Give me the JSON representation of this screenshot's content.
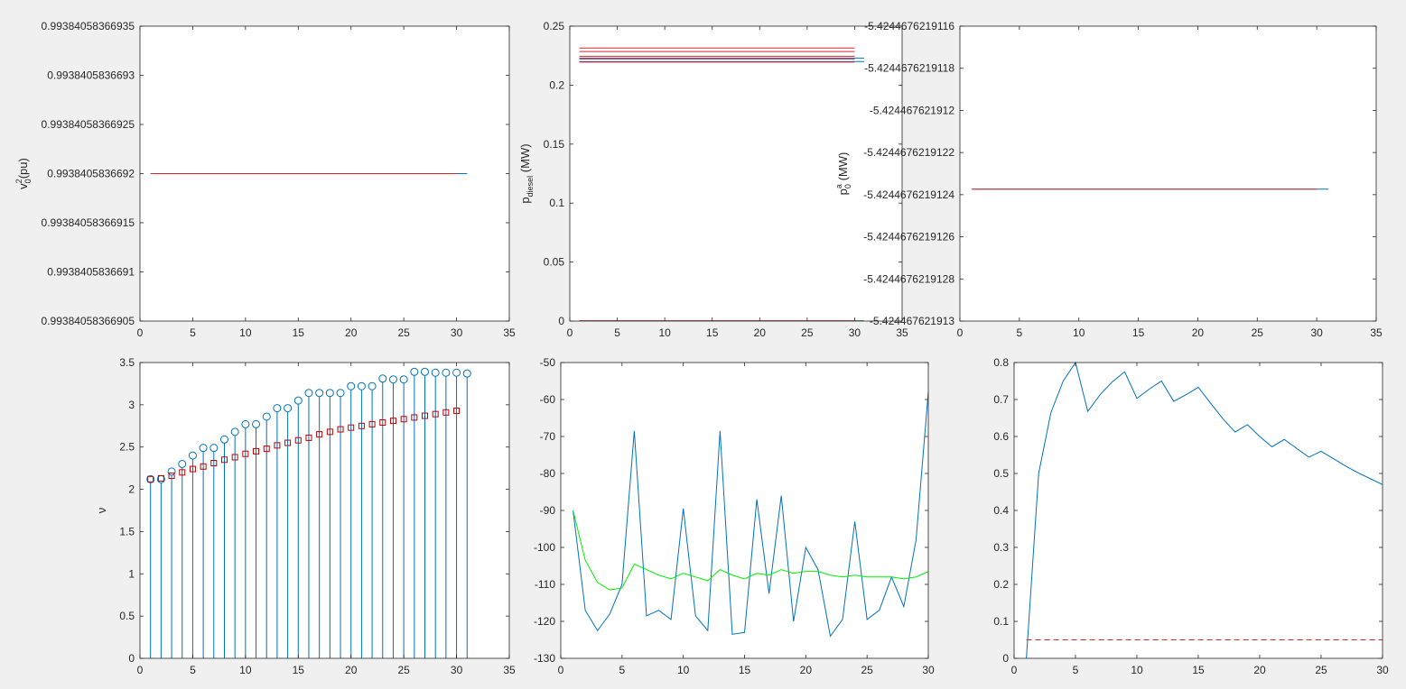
{
  "chart_data": [
    {
      "id": "p1",
      "type": "line",
      "ylabel": {
        "main": "v",
        "sub": "0",
        "sup": "2",
        "tail": "(pu)"
      },
      "xlim": [
        0,
        35
      ],
      "xticks": [
        0,
        5,
        10,
        15,
        20,
        25,
        30,
        35
      ],
      "ylim": [
        0,
        6
      ],
      "yticks": [
        0,
        1,
        2,
        3,
        4,
        5,
        6
      ],
      "ytick_labels": [
        "0.99384058366905",
        "0.9938405836691",
        "0.99384058366915",
        "0.9938405836692",
        "0.99384058366925",
        "0.9938405836693",
        "0.99384058366935"
      ],
      "series": [
        {
          "color": "#0072bd",
          "x": [
            1,
            31
          ],
          "y": [
            3,
            3
          ]
        },
        {
          "color": "#d62728",
          "x": [
            1,
            30
          ],
          "y": [
            3,
            3
          ]
        }
      ]
    },
    {
      "id": "p2",
      "type": "line",
      "ylabel": {
        "main": "p",
        "sub": "diesel",
        "tail": " (MW)"
      },
      "xlim": [
        0,
        35
      ],
      "xticks": [
        0,
        5,
        10,
        15,
        20,
        25,
        30,
        35
      ],
      "ylim": [
        0,
        0.25
      ],
      "yticks": [
        0,
        0.05,
        0.1,
        0.15,
        0.2,
        0.25
      ],
      "ytick_labels": [
        "0",
        "0.05",
        "0.1",
        "0.15",
        "0.2",
        "0.25"
      ],
      "series": [
        {
          "color": "#0072bd",
          "x": [
            1,
            31
          ],
          "y": [
            0.22,
            0.22
          ]
        },
        {
          "color": "#0072bd",
          "x": [
            1,
            31
          ],
          "y": [
            0.223,
            0.223
          ]
        },
        {
          "color": "#d62728",
          "x": [
            1,
            30
          ],
          "y": [
            0.2195,
            0.2195
          ]
        },
        {
          "color": "#d62728",
          "x": [
            1,
            30
          ],
          "y": [
            0.2222,
            0.2222
          ]
        },
        {
          "color": "#d62728",
          "x": [
            1,
            30
          ],
          "y": [
            0.2245,
            0.2245
          ]
        },
        {
          "color": "#d62728",
          "x": [
            1,
            30
          ],
          "y": [
            0.2285,
            0.2285
          ]
        },
        {
          "color": "#d62728",
          "x": [
            1,
            30
          ],
          "y": [
            0.2315,
            0.2315
          ]
        },
        {
          "color": "#d62728",
          "x": [
            1,
            30
          ],
          "y": [
            0.0003,
            0.0003
          ]
        },
        {
          "color": "#2ca02c",
          "x": [
            30,
            31
          ],
          "y": [
            0.0003,
            0.0003
          ]
        }
      ]
    },
    {
      "id": "p3",
      "type": "line",
      "ylabel": {
        "main": "p",
        "sub": "0",
        "sup": "a",
        "tail": " (MW)"
      },
      "xlim": [
        0,
        35
      ],
      "xticks": [
        0,
        5,
        10,
        15,
        20,
        25,
        30,
        35
      ],
      "ylim": [
        0,
        7
      ],
      "yticks": [
        0,
        1,
        2,
        3,
        4,
        5,
        6,
        7
      ],
      "ytick_labels": [
        "-5.424467621913",
        "-5.4244676219128",
        "-5.4244676219126",
        "-5.4244676219124",
        "-5.4244676219122",
        "-5.424467621912",
        "-5.4244676219118",
        "-5.4244676219116"
      ],
      "series": [
        {
          "color": "#0072bd",
          "x": [
            1,
            31
          ],
          "y": [
            3.13,
            3.13
          ]
        },
        {
          "color": "#d62728",
          "x": [
            1,
            30
          ],
          "y": [
            3.13,
            3.13
          ]
        }
      ]
    },
    {
      "id": "p4",
      "type": "stem",
      "ylabel": {
        "main": "ν"
      },
      "xlim": [
        0,
        35
      ],
      "xticks": [
        0,
        5,
        10,
        15,
        20,
        25,
        30,
        35
      ],
      "ylim": [
        0,
        3.5
      ],
      "yticks": [
        0,
        0.5,
        1,
        1.5,
        2,
        2.5,
        3,
        3.5
      ],
      "ytick_labels": [
        "0",
        "0.5",
        "1",
        "1.5",
        "2",
        "2.5",
        "3",
        "3.5"
      ],
      "stem": {
        "color": "#0072bd",
        "x": [
          1,
          2,
          3,
          4,
          5,
          6,
          7,
          8,
          9,
          10,
          11,
          12,
          13,
          14,
          15,
          16,
          17,
          18,
          19,
          20,
          21,
          22,
          23,
          24,
          25,
          26,
          27,
          28,
          29,
          30,
          31
        ],
        "y": [
          2.12,
          2.12,
          2.21,
          2.3,
          2.4,
          2.49,
          2.49,
          2.59,
          2.68,
          2.77,
          2.77,
          2.86,
          2.96,
          2.96,
          3.05,
          3.14,
          3.14,
          3.14,
          3.14,
          3.22,
          3.22,
          3.22,
          3.31,
          3.3,
          3.3,
          3.39,
          3.39,
          3.38,
          3.38,
          3.38,
          3.37
        ]
      },
      "markers": {
        "color": "#c00000",
        "x": [
          1,
          2,
          3,
          4,
          5,
          6,
          7,
          8,
          9,
          10,
          11,
          12,
          13,
          14,
          15,
          16,
          17,
          18,
          19,
          20,
          21,
          22,
          23,
          24,
          25,
          26,
          27,
          28,
          29,
          30
        ],
        "y": [
          2.12,
          2.13,
          2.16,
          2.2,
          2.24,
          2.27,
          2.31,
          2.35,
          2.38,
          2.42,
          2.45,
          2.48,
          2.52,
          2.55,
          2.58,
          2.61,
          2.65,
          2.68,
          2.71,
          2.73,
          2.75,
          2.77,
          2.79,
          2.81,
          2.83,
          2.85,
          2.87,
          2.89,
          2.91,
          2.93
        ]
      }
    },
    {
      "id": "p5",
      "type": "line",
      "xlim": [
        0,
        30
      ],
      "xticks": [
        0,
        5,
        10,
        15,
        20,
        25,
        30
      ],
      "ylim": [
        -130,
        -50
      ],
      "yticks": [
        -130,
        -120,
        -110,
        -100,
        -90,
        -80,
        -70,
        -60,
        -50
      ],
      "ytick_labels": [
        "-130",
        "-120",
        "-110",
        "-100",
        "-90",
        "-80",
        "-70",
        "-60",
        "-50"
      ],
      "series": [
        {
          "color": "#0072bd",
          "x": [
            1,
            2,
            3,
            4,
            5,
            6,
            7,
            8,
            9,
            10,
            11,
            12,
            13,
            14,
            15,
            16,
            17,
            18,
            19,
            20,
            21,
            22,
            23,
            24,
            25,
            26,
            27,
            28,
            29,
            30
          ],
          "y": [
            -90,
            -117,
            -122.5,
            -118,
            -110,
            -68.5,
            -118.5,
            -117,
            -119.5,
            -89.5,
            -118.5,
            -122.5,
            -68.5,
            -123.5,
            -123,
            -87,
            -112.5,
            -86,
            -120,
            -100,
            -106,
            -124,
            -119.5,
            -93,
            -119.5,
            -117,
            -108,
            -116,
            -98,
            -58
          ]
        },
        {
          "color": "#00ee00",
          "x": [
            1,
            2,
            3,
            4,
            5,
            6,
            7,
            8,
            9,
            10,
            11,
            12,
            13,
            14,
            15,
            16,
            17,
            18,
            19,
            20,
            21,
            22,
            23,
            24,
            25,
            26,
            27,
            28,
            29,
            30
          ],
          "y": [
            -90,
            -103.5,
            -109.5,
            -111.5,
            -111,
            -104.5,
            -106,
            -107.5,
            -108.5,
            -107,
            -108,
            -109,
            -106,
            -107.5,
            -108.5,
            -107,
            -107.5,
            -106,
            -107,
            -106.5,
            -106.5,
            -107.5,
            -108,
            -107.5,
            -108,
            -108,
            -108,
            -108.5,
            -108,
            -106.5
          ]
        }
      ]
    },
    {
      "id": "p6",
      "type": "line",
      "xlim": [
        0,
        30
      ],
      "xticks": [
        0,
        5,
        10,
        15,
        20,
        25,
        30
      ],
      "ylim": [
        0,
        0.8
      ],
      "yticks": [
        0,
        0.1,
        0.2,
        0.3,
        0.4,
        0.5,
        0.6,
        0.7,
        0.8
      ],
      "ytick_labels": [
        "0",
        "0.1",
        "0.2",
        "0.3",
        "0.4",
        "0.5",
        "0.6",
        "0.7",
        "0.8"
      ],
      "series": [
        {
          "color": "#0072bd",
          "x": [
            1,
            2,
            3,
            4,
            5,
            6,
            7,
            8,
            9,
            10,
            11,
            12,
            13,
            14,
            15,
            16,
            17,
            18,
            19,
            20,
            21,
            22,
            23,
            24,
            25,
            26,
            27,
            28,
            29,
            30
          ],
          "y": [
            0.0,
            0.5,
            0.665,
            0.75,
            0.8,
            0.668,
            0.713,
            0.748,
            0.775,
            0.703,
            0.728,
            0.75,
            0.695,
            0.713,
            0.733,
            0.69,
            0.648,
            0.612,
            0.632,
            0.6,
            0.572,
            0.592,
            0.568,
            0.544,
            0.56,
            0.54,
            0.52,
            0.502,
            0.486,
            0.47
          ]
        },
        {
          "color": "#d62728",
          "dash": true,
          "x": [
            1,
            30
          ],
          "y": [
            0.05,
            0.05
          ]
        }
      ]
    }
  ]
}
